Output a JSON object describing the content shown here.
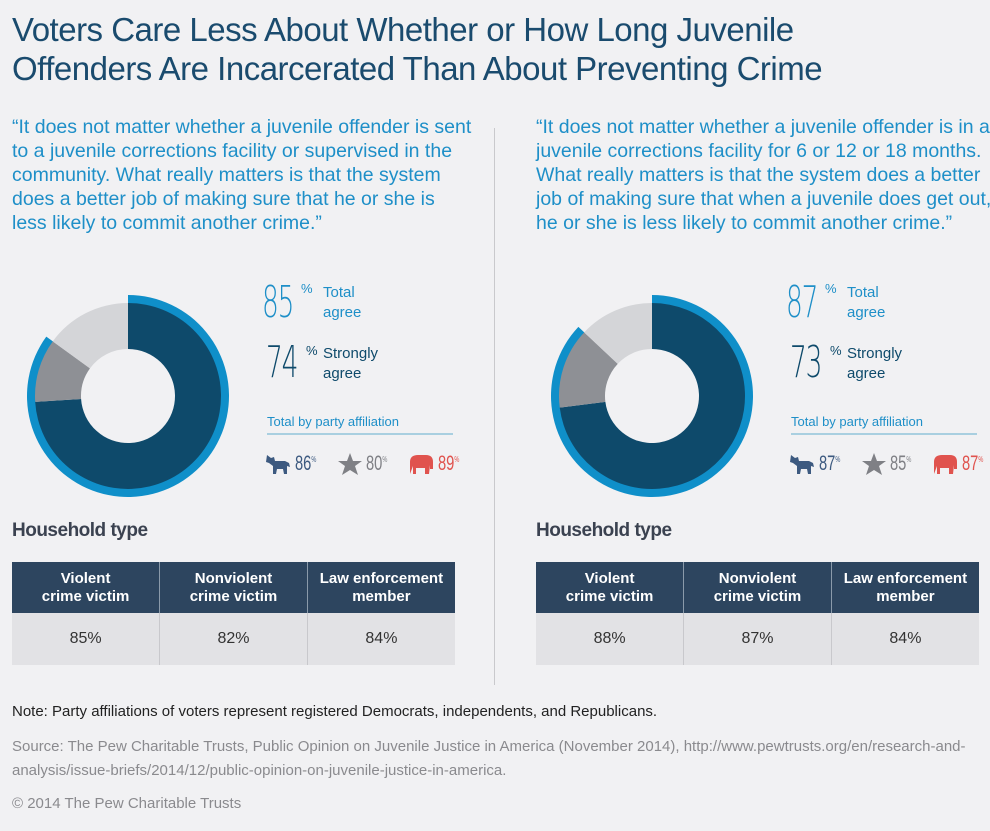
{
  "title": [
    "Voters Care Less About Whether or How Long Juvenile",
    "Offenders Are Incarcerated Than About Preventing Crime"
  ],
  "colors": {
    "strongly": "#0e4a6b",
    "somewhat": "#8e9095",
    "other": "#d4d5d8",
    "total_ring": "#0f8fc9",
    "democrat": "#3d5a80",
    "independent": "#7f8085",
    "republican": "#e0534e"
  },
  "panels": [
    {
      "quote": "“It does not matter whether a juvenile offender is sent to a juvenile corrections facility or supervised in the community. What really matters is that the system does a better job of making sure that he or she is less likely to commit another crime.”",
      "total": "85",
      "total_label1": "Total",
      "total_label2": "agree",
      "strong": "74",
      "strong_label1": "Strongly",
      "strong_label2": "agree",
      "pct": "%",
      "party_heading": "Total by party affiliation",
      "party": [
        {
          "icon": "donkey-icon",
          "value": "86"
        },
        {
          "icon": "star-icon",
          "value": "80"
        },
        {
          "icon": "elephant-icon",
          "value": "89"
        }
      ],
      "household_heading": "Household type",
      "table_headers": [
        [
          "Violent",
          "crime victim"
        ],
        [
          "Nonviolent",
          "crime victim"
        ],
        [
          "Law enforcement",
          "member"
        ]
      ],
      "table_values": [
        "85%",
        "82%",
        "84%"
      ]
    },
    {
      "quote": "“It does not matter whether a juvenile offender is in a juvenile corrections facility for 6 or 12 or 18 months. What really matters is that the system does a better job of making sure that when a juvenile does get out, he or she is less likely to commit another crime.”",
      "total": "87",
      "total_label1": "Total",
      "total_label2": "agree",
      "strong": "73",
      "strong_label1": "Strongly",
      "strong_label2": "agree",
      "pct": "%",
      "party_heading": "Total by party affiliation",
      "party": [
        {
          "icon": "donkey-icon",
          "value": "87"
        },
        {
          "icon": "star-icon",
          "value": "85"
        },
        {
          "icon": "elephant-icon",
          "value": "87"
        }
      ],
      "household_heading": "Household type",
      "table_headers": [
        [
          "Violent",
          "crime victim"
        ],
        [
          "Nonviolent",
          "crime victim"
        ],
        [
          "Law enforcement",
          "member"
        ]
      ],
      "table_values": [
        "88%",
        "87%",
        "84%"
      ]
    }
  ],
  "chart_data": [
    {
      "type": "pie",
      "variant": "donut",
      "slices": [
        {
          "label": "Strongly agree",
          "value": 74
        },
        {
          "label": "Somewhat agree",
          "value": 11
        },
        {
          "label": "Other",
          "value": 15
        }
      ],
      "ring": {
        "label": "Total agree",
        "value": 85
      }
    },
    {
      "type": "pie",
      "variant": "donut",
      "slices": [
        {
          "label": "Strongly agree",
          "value": 73
        },
        {
          "label": "Somewhat agree",
          "value": 14
        },
        {
          "label": "Other",
          "value": 13
        }
      ],
      "ring": {
        "label": "Total agree",
        "value": 87
      }
    }
  ],
  "note": "Note: Party affiliations of voters represent registered Democrats, independents, and Republicans.",
  "source": "Source: The Pew Charitable Trusts, Public Opinion on Juvenile Justice in America (November 2014), http://www.pewtrusts.org/en/research-and-analysis/issue-briefs/2014/12/public-opinion-on-juvenile-justice-in-america.",
  "copyright": "© 2014 The Pew Charitable Trusts"
}
